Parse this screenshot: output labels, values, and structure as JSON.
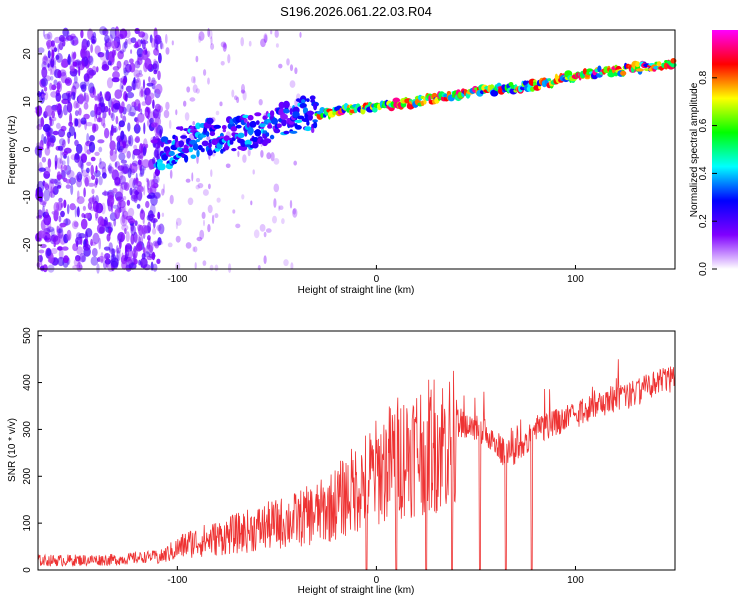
{
  "title": "S196.2026.061.22.03.R04",
  "chart_data": [
    {
      "type": "heatmap",
      "xlabel": "Height of straight line (km)",
      "ylabel": "Frequency (Hz)",
      "xlim": [
        -170,
        150
      ],
      "ylim": [
        -25,
        25
      ],
      "x_ticks": [
        -100,
        0,
        100
      ],
      "y_ticks": [
        -20,
        -10,
        0,
        10,
        20
      ],
      "colorbar": {
        "label": "Normalized spectral amplitude",
        "range": [
          0.0,
          1.0
        ],
        "ticks": [
          0.0,
          0.2,
          0.4,
          0.6,
          0.8
        ],
        "colors": [
          "#ffffff",
          "#8000ff",
          "#0000ff",
          "#00ffff",
          "#00ff00",
          "#ffff00",
          "#ff0000",
          "#ff00ff"
        ]
      },
      "ridge": {
        "x": [
          -110,
          -100,
          -80,
          -60,
          -40,
          -20,
          0,
          20,
          40,
          60,
          80,
          100,
          120,
          150
        ],
        "y": [
          -2,
          1,
          3,
          4,
          7,
          8,
          9,
          10,
          11.5,
          12.5,
          13.5,
          15.5,
          16.5,
          18
        ]
      }
    },
    {
      "type": "line",
      "xlabel": "Height of straight line (km)",
      "ylabel": "SNR (10 * v/v)",
      "xlim": [
        -170,
        150
      ],
      "ylim": [
        0,
        510
      ],
      "x_ticks": [
        -100,
        0,
        100
      ],
      "y_ticks": [
        0,
        100,
        200,
        300,
        400,
        500
      ],
      "series_color": "#ee3333",
      "envelope": {
        "x": [
          -170,
          -130,
          -110,
          -95,
          -80,
          -60,
          -40,
          -25,
          -15,
          -5,
          10,
          25,
          40,
          55,
          60,
          65,
          72,
          80,
          95,
          110,
          125,
          140,
          150
        ],
        "y": [
          20,
          22,
          30,
          70,
          85,
          110,
          135,
          160,
          200,
          240,
          300,
          335,
          345,
          325,
          300,
          275,
          290,
          330,
          350,
          385,
          400,
          425,
          440
        ]
      },
      "dips": [
        -5,
        10,
        25,
        38,
        52,
        65,
        78
      ]
    }
  ]
}
